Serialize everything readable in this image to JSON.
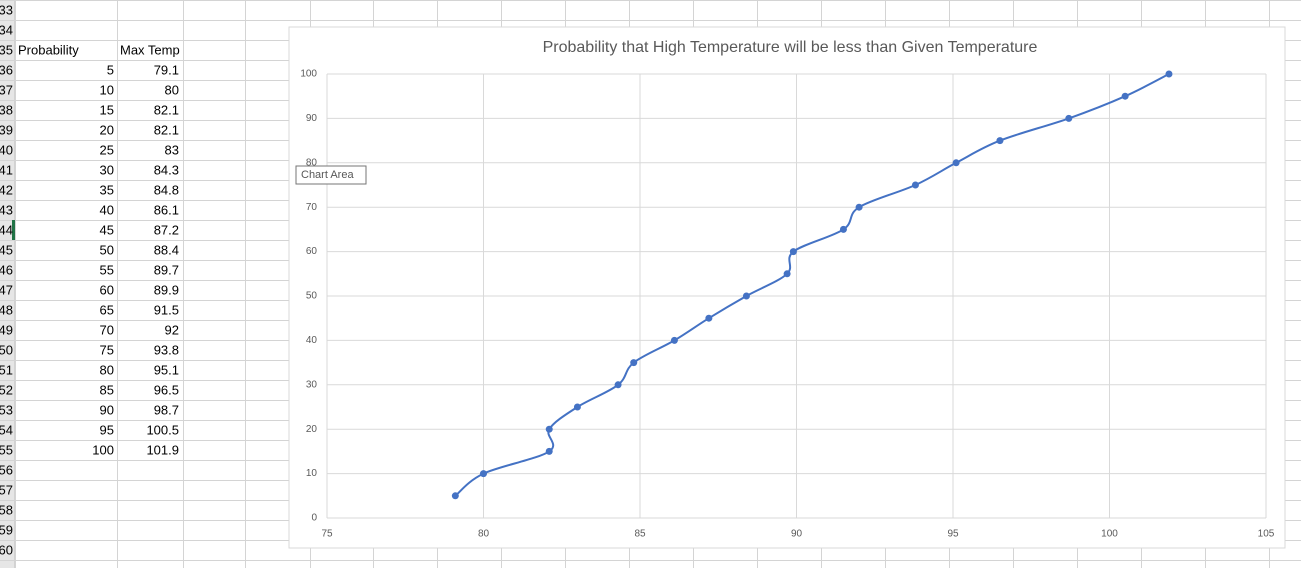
{
  "sheet": {
    "row_numbers": [
      "33",
      "34",
      "35",
      "36",
      "37",
      "38",
      "39",
      "40",
      "41",
      "42",
      "43",
      "44",
      "45",
      "46",
      "47",
      "48",
      "49",
      "50",
      "51",
      "52",
      "53",
      "54",
      "55",
      "56",
      "57",
      "58",
      "59",
      "60"
    ],
    "headers": [
      "Probability",
      "Max Temp"
    ],
    "rows": [
      [
        5,
        79.1
      ],
      [
        10,
        80
      ],
      [
        15,
        82.1
      ],
      [
        20,
        82.1
      ],
      [
        25,
        83
      ],
      [
        30,
        84.3
      ],
      [
        35,
        84.8
      ],
      [
        40,
        86.1
      ],
      [
        45,
        87.2
      ],
      [
        50,
        88.4
      ],
      [
        55,
        89.7
      ],
      [
        60,
        89.9
      ],
      [
        65,
        91.5
      ],
      [
        70,
        92
      ],
      [
        75,
        93.8
      ],
      [
        80,
        95.1
      ],
      [
        85,
        96.5
      ],
      [
        90,
        98.7
      ],
      [
        95,
        100.5
      ],
      [
        100,
        101.9
      ]
    ]
  },
  "tooltip": "Chart Area",
  "chart_data": {
    "type": "scatter",
    "smooth": true,
    "title": "Probability that High Temperature will be less than Given Temperature",
    "x": [
      79.1,
      80,
      82.1,
      82.1,
      83,
      84.3,
      84.8,
      86.1,
      87.2,
      88.4,
      89.7,
      89.9,
      91.5,
      92,
      93.8,
      95.1,
      96.5,
      98.7,
      100.5,
      101.9
    ],
    "series": [
      {
        "color": "#4472c4",
        "values": [
          5,
          10,
          15,
          20,
          25,
          30,
          35,
          40,
          45,
          50,
          55,
          60,
          65,
          70,
          75,
          80,
          85,
          90,
          95,
          100
        ]
      }
    ],
    "xlim": [
      75,
      105
    ],
    "xticks": [
      75,
      80,
      85,
      90,
      95,
      100,
      105
    ],
    "ylim": [
      0,
      100
    ],
    "yticks": [
      0,
      10,
      20,
      30,
      40,
      50,
      60,
      70,
      80,
      90,
      100
    ],
    "grid": true
  }
}
